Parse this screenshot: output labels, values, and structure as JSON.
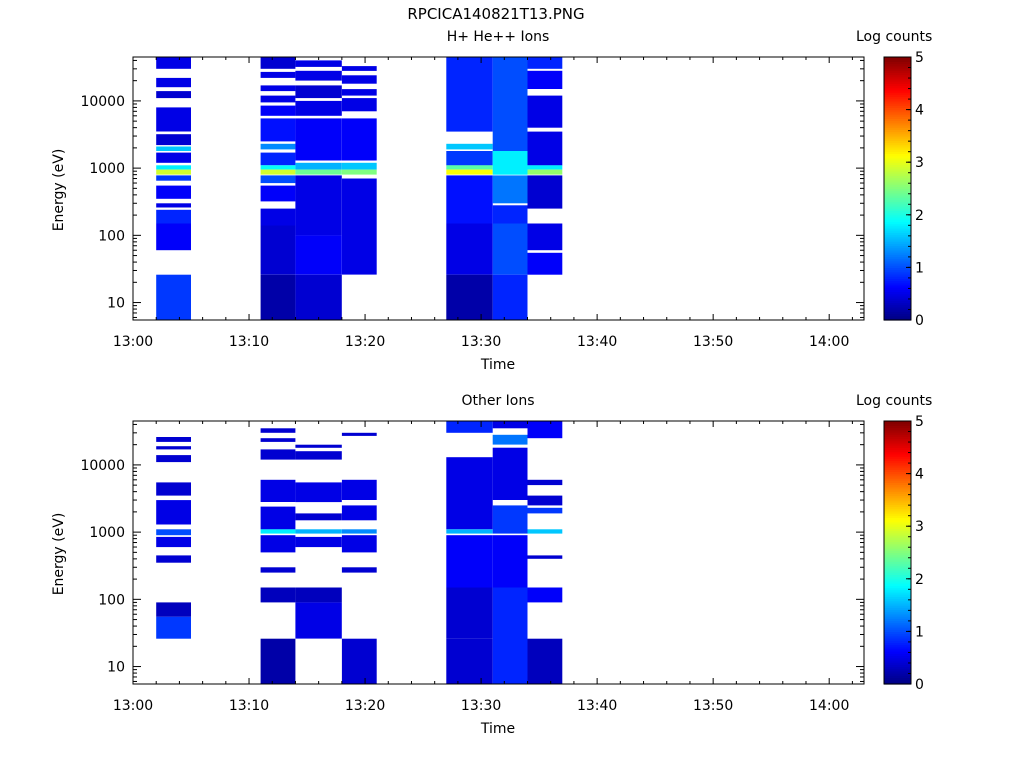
{
  "page": {
    "title": "RPCICA140821T13.PNG"
  },
  "panels": [
    {
      "title": "H+ He++ Ions",
      "xlabel": "Time",
      "ylabel": "Energy (eV)",
      "colorbar_title": "Log counts"
    },
    {
      "title": "Other Ions",
      "xlabel": "Time",
      "ylabel": "Energy (eV)",
      "colorbar_title": "Log counts"
    }
  ],
  "chart_data": [
    {
      "type": "heatmap",
      "title": "H+ He++ Ions",
      "xlabel": "Time",
      "ylabel": "Energy (eV)",
      "x_ticks": [
        "13:00",
        "13:10",
        "13:20",
        "13:30",
        "13:40",
        "13:50",
        "14:00"
      ],
      "y_ticks": [
        "10",
        "100",
        "1000",
        "10000"
      ],
      "y_scale": "log",
      "ylim": [
        5.5,
        45000
      ],
      "xlim": [
        "13:00",
        "14:03"
      ],
      "colorbar": {
        "label": "Log counts",
        "range": [
          0,
          5
        ],
        "ticks": [
          "0",
          "1",
          "2",
          "3",
          "4",
          "5"
        ],
        "colormap": "jet"
      },
      "columns": [
        {
          "t0": "13:02",
          "t1": "13:05",
          "cells": [
            {
              "e0": 30000,
              "e1": 45000,
              "v": 0.5
            },
            {
              "e0": 16000,
              "e1": 22000,
              "v": 0.5
            },
            {
              "e0": 11000,
              "e1": 14000,
              "v": 0.4
            },
            {
              "e0": 3500,
              "e1": 8000,
              "v": 0.5
            },
            {
              "e0": 2200,
              "e1": 3200,
              "v": 0.4
            },
            {
              "e0": 1800,
              "e1": 2100,
              "v": 1.6
            },
            {
              "e0": 1200,
              "e1": 1700,
              "v": 0.5
            },
            {
              "e0": 950,
              "e1": 1100,
              "v": 1.8
            },
            {
              "e0": 800,
              "e1": 950,
              "v": 2.9
            },
            {
              "e0": 650,
              "e1": 780,
              "v": 0.9
            },
            {
              "e0": 350,
              "e1": 550,
              "v": 0.6
            },
            {
              "e0": 260,
              "e1": 300,
              "v": 0.5
            },
            {
              "e0": 150,
              "e1": 240,
              "v": 0.8
            },
            {
              "e0": 60,
              "e1": 150,
              "v": 0.6
            },
            {
              "e0": 5.5,
              "e1": 26,
              "v": 0.9
            }
          ]
        },
        {
          "t0": "13:11",
          "t1": "13:14",
          "cells": [
            {
              "e0": 30000,
              "e1": 45000,
              "v": 0.4
            },
            {
              "e0": 22000,
              "e1": 27000,
              "v": 0.5
            },
            {
              "e0": 14000,
              "e1": 17000,
              "v": 0.5
            },
            {
              "e0": 9500,
              "e1": 12000,
              "v": 0.5
            },
            {
              "e0": 6000,
              "e1": 8500,
              "v": 0.6
            },
            {
              "e0": 2500,
              "e1": 5500,
              "v": 0.7
            },
            {
              "e0": 1900,
              "e1": 2300,
              "v": 1.3
            },
            {
              "e0": 1100,
              "e1": 1700,
              "v": 0.8
            },
            {
              "e0": 950,
              "e1": 1100,
              "v": 1.9
            },
            {
              "e0": 800,
              "e1": 950,
              "v": 2.9
            },
            {
              "e0": 600,
              "e1": 780,
              "v": 1.0
            },
            {
              "e0": 320,
              "e1": 550,
              "v": 0.6
            },
            {
              "e0": 140,
              "e1": 250,
              "v": 0.5
            },
            {
              "e0": 26,
              "e1": 140,
              "v": 0.4
            },
            {
              "e0": 5.5,
              "e1": 26,
              "v": 0.2
            }
          ]
        },
        {
          "t0": "13:14",
          "t1": "13:18",
          "cells": [
            {
              "e0": 32000,
              "e1": 40000,
              "v": 0.5
            },
            {
              "e0": 20000,
              "e1": 28000,
              "v": 0.5
            },
            {
              "e0": 11000,
              "e1": 17000,
              "v": 0.4
            },
            {
              "e0": 6000,
              "e1": 10000,
              "v": 0.5
            },
            {
              "e0": 1300,
              "e1": 5500,
              "v": 0.6
            },
            {
              "e0": 950,
              "e1": 1200,
              "v": 1.5
            },
            {
              "e0": 800,
              "e1": 950,
              "v": 2.4
            },
            {
              "e0": 100,
              "e1": 780,
              "v": 0.5
            },
            {
              "e0": 26,
              "e1": 100,
              "v": 0.6
            },
            {
              "e0": 5.5,
              "e1": 26,
              "v": 0.4
            }
          ]
        },
        {
          "t0": "13:18",
          "t1": "13:21",
          "cells": [
            {
              "e0": 28000,
              "e1": 33000,
              "v": 0.5
            },
            {
              "e0": 18000,
              "e1": 24000,
              "v": 0.5
            },
            {
              "e0": 12000,
              "e1": 15000,
              "v": 0.5
            },
            {
              "e0": 7000,
              "e1": 11000,
              "v": 0.5
            },
            {
              "e0": 1300,
              "e1": 5500,
              "v": 0.6
            },
            {
              "e0": 950,
              "e1": 1200,
              "v": 1.6
            },
            {
              "e0": 800,
              "e1": 950,
              "v": 2.5
            },
            {
              "e0": 26,
              "e1": 700,
              "v": 0.5
            }
          ]
        },
        {
          "t0": "13:27",
          "t1": "13:31",
          "cells": [
            {
              "e0": 3500,
              "e1": 45000,
              "v": 0.8
            },
            {
              "e0": 1900,
              "e1": 2300,
              "v": 1.6
            },
            {
              "e0": 1100,
              "e1": 1800,
              "v": 0.9
            },
            {
              "e0": 950,
              "e1": 1100,
              "v": 2.3
            },
            {
              "e0": 800,
              "e1": 950,
              "v": 3.1
            },
            {
              "e0": 150,
              "e1": 780,
              "v": 0.7
            },
            {
              "e0": 26,
              "e1": 150,
              "v": 0.5
            },
            {
              "e0": 5.5,
              "e1": 26,
              "v": 0.2
            }
          ]
        },
        {
          "t0": "13:31",
          "t1": "13:34",
          "cells": [
            {
              "e0": 1800,
              "e1": 45000,
              "v": 1.0
            },
            {
              "e0": 800,
              "e1": 1800,
              "v": 1.8
            },
            {
              "e0": 300,
              "e1": 780,
              "v": 1.2
            },
            {
              "e0": 150,
              "e1": 280,
              "v": 0.8
            },
            {
              "e0": 26,
              "e1": 150,
              "v": 1.0
            },
            {
              "e0": 5.5,
              "e1": 26,
              "v": 0.8
            }
          ]
        },
        {
          "t0": "13:34",
          "t1": "13:37",
          "cells": [
            {
              "e0": 30000,
              "e1": 45000,
              "v": 0.8
            },
            {
              "e0": 15000,
              "e1": 28000,
              "v": 0.6
            },
            {
              "e0": 4000,
              "e1": 12000,
              "v": 0.5
            },
            {
              "e0": 1100,
              "e1": 3500,
              "v": 0.5
            },
            {
              "e0": 950,
              "e1": 1100,
              "v": 1.8
            },
            {
              "e0": 800,
              "e1": 950,
              "v": 2.6
            },
            {
              "e0": 250,
              "e1": 780,
              "v": 0.4
            },
            {
              "e0": 60,
              "e1": 150,
              "v": 0.5
            },
            {
              "e0": 26,
              "e1": 55,
              "v": 0.6
            }
          ]
        }
      ]
    },
    {
      "type": "heatmap",
      "title": "Other Ions",
      "xlabel": "Time",
      "ylabel": "Energy (eV)",
      "x_ticks": [
        "13:00",
        "13:10",
        "13:20",
        "13:30",
        "13:40",
        "13:50",
        "14:00"
      ],
      "y_ticks": [
        "10",
        "100",
        "1000",
        "10000"
      ],
      "y_scale": "log",
      "ylim": [
        5.5,
        45000
      ],
      "xlim": [
        "13:00",
        "14:03"
      ],
      "colorbar": {
        "label": "Log counts",
        "range": [
          0,
          5
        ],
        "ticks": [
          "0",
          "1",
          "2",
          "3",
          "4",
          "5"
        ],
        "colormap": "jet"
      },
      "columns": [
        {
          "t0": "13:02",
          "t1": "13:05",
          "cells": [
            {
              "e0": 22000,
              "e1": 26000,
              "v": 0.4
            },
            {
              "e0": 17000,
              "e1": 19000,
              "v": 0.4
            },
            {
              "e0": 11000,
              "e1": 14000,
              "v": 0.4
            },
            {
              "e0": 3500,
              "e1": 5500,
              "v": 0.4
            },
            {
              "e0": 1300,
              "e1": 3000,
              "v": 0.5
            },
            {
              "e0": 900,
              "e1": 1100,
              "v": 1.0
            },
            {
              "e0": 600,
              "e1": 850,
              "v": 0.5
            },
            {
              "e0": 350,
              "e1": 450,
              "v": 0.4
            },
            {
              "e0": 55,
              "e1": 90,
              "v": 0.3
            },
            {
              "e0": 26,
              "e1": 55,
              "v": 0.9
            }
          ]
        },
        {
          "t0": "13:11",
          "t1": "13:14",
          "cells": [
            {
              "e0": 30000,
              "e1": 35000,
              "v": 0.4
            },
            {
              "e0": 22000,
              "e1": 25000,
              "v": 0.4
            },
            {
              "e0": 12000,
              "e1": 17000,
              "v": 0.4
            },
            {
              "e0": 2800,
              "e1": 6000,
              "v": 0.5
            },
            {
              "e0": 1100,
              "e1": 2400,
              "v": 0.5
            },
            {
              "e0": 950,
              "e1": 1100,
              "v": 1.8
            },
            {
              "e0": 500,
              "e1": 900,
              "v": 0.5
            },
            {
              "e0": 250,
              "e1": 300,
              "v": 0.4
            },
            {
              "e0": 90,
              "e1": 150,
              "v": 0.3
            },
            {
              "e0": 5.5,
              "e1": 26,
              "v": 0.2
            }
          ]
        },
        {
          "t0": "13:14",
          "t1": "13:18",
          "cells": [
            {
              "e0": 18000,
              "e1": 20000,
              "v": 0.4
            },
            {
              "e0": 12000,
              "e1": 16000,
              "v": 0.4
            },
            {
              "e0": 2800,
              "e1": 5500,
              "v": 0.5
            },
            {
              "e0": 1500,
              "e1": 1900,
              "v": 0.4
            },
            {
              "e0": 950,
              "e1": 1100,
              "v": 1.5
            },
            {
              "e0": 600,
              "e1": 850,
              "v": 0.5
            },
            {
              "e0": 90,
              "e1": 150,
              "v": 0.3
            },
            {
              "e0": 26,
              "e1": 90,
              "v": 0.5
            }
          ]
        },
        {
          "t0": "13:18",
          "t1": "13:21",
          "cells": [
            {
              "e0": 27000,
              "e1": 30000,
              "v": 0.4
            },
            {
              "e0": 3000,
              "e1": 6000,
              "v": 0.5
            },
            {
              "e0": 1500,
              "e1": 2500,
              "v": 0.5
            },
            {
              "e0": 950,
              "e1": 1100,
              "v": 1.3
            },
            {
              "e0": 500,
              "e1": 900,
              "v": 0.5
            },
            {
              "e0": 250,
              "e1": 300,
              "v": 0.4
            },
            {
              "e0": 5.5,
              "e1": 26,
              "v": 0.4
            }
          ]
        },
        {
          "t0": "13:27",
          "t1": "13:31",
          "cells": [
            {
              "e0": 30000,
              "e1": 45000,
              "v": 0.8
            },
            {
              "e0": 1100,
              "e1": 13000,
              "v": 0.5
            },
            {
              "e0": 950,
              "e1": 1100,
              "v": 1.5
            },
            {
              "e0": 150,
              "e1": 900,
              "v": 0.6
            },
            {
              "e0": 26,
              "e1": 150,
              "v": 0.4
            },
            {
              "e0": 5.5,
              "e1": 26,
              "v": 0.4
            }
          ]
        },
        {
          "t0": "13:31",
          "t1": "13:34",
          "cells": [
            {
              "e0": 35000,
              "e1": 45000,
              "v": 0.5
            },
            {
              "e0": 20000,
              "e1": 28000,
              "v": 1.2
            },
            {
              "e0": 3000,
              "e1": 18000,
              "v": 0.5
            },
            {
              "e0": 950,
              "e1": 2500,
              "v": 0.9
            },
            {
              "e0": 150,
              "e1": 900,
              "v": 0.6
            },
            {
              "e0": 5.5,
              "e1": 150,
              "v": 0.8
            }
          ]
        },
        {
          "t0": "13:34",
          "t1": "13:37",
          "cells": [
            {
              "e0": 25000,
              "e1": 45000,
              "v": 0.6
            },
            {
              "e0": 5000,
              "e1": 6000,
              "v": 0.4
            },
            {
              "e0": 2500,
              "e1": 3500,
              "v": 0.4
            },
            {
              "e0": 1900,
              "e1": 2300,
              "v": 0.9
            },
            {
              "e0": 950,
              "e1": 1100,
              "v": 1.6
            },
            {
              "e0": 400,
              "e1": 450,
              "v": 0.4
            },
            {
              "e0": 90,
              "e1": 150,
              "v": 0.6
            },
            {
              "e0": 5.5,
              "e1": 26,
              "v": 0.3
            }
          ]
        }
      ]
    }
  ]
}
